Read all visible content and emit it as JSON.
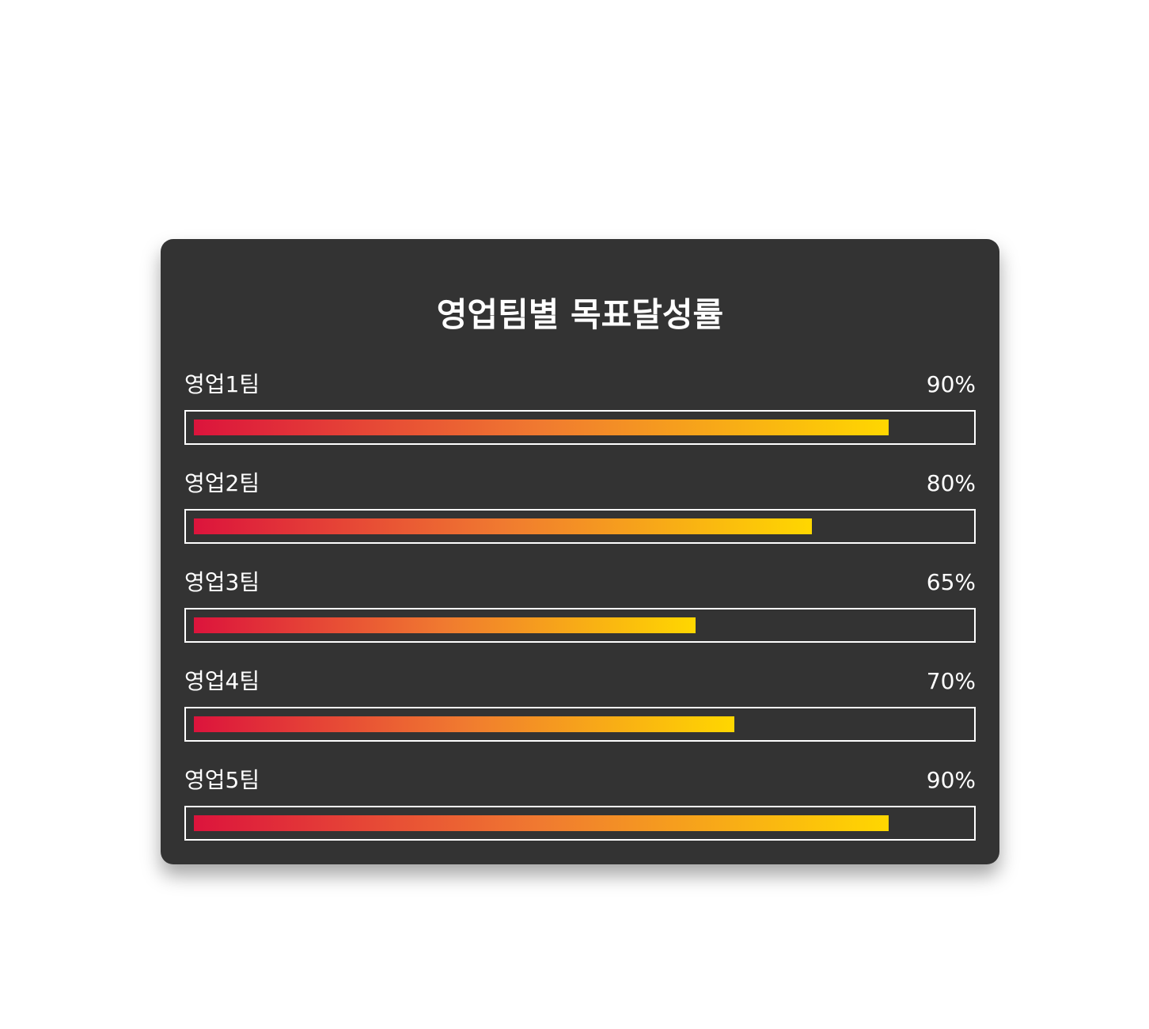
{
  "chart_data": {
    "type": "bar",
    "orientation": "horizontal",
    "title": "영업팀별 목표달성률",
    "categories": [
      "영업1팀",
      "영업2팀",
      "영업3팀",
      "영업4팀",
      "영업5팀"
    ],
    "values": [
      90,
      80,
      65,
      70,
      90
    ],
    "value_labels": [
      "90%",
      "80%",
      "65%",
      "70%",
      "90%"
    ],
    "unit": "%",
    "xlim": [
      0,
      100
    ],
    "grid": false,
    "legend": "none",
    "colors": {
      "background": "#333333",
      "text": "#ffffff",
      "track_border": "#ffffff",
      "gradient_start": "#dc143c",
      "gradient_mid": "#f07a30",
      "gradient_end": "#ffd700"
    }
  }
}
